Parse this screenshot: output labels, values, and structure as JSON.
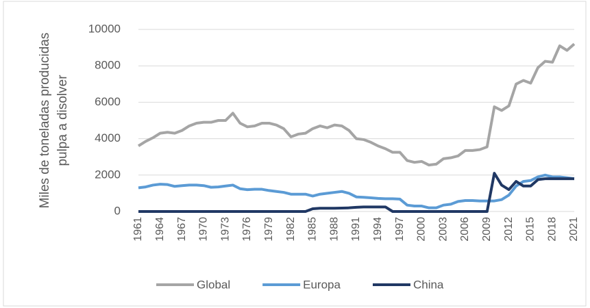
{
  "chart_data": {
    "type": "line",
    "y_label": [
      "Miles de toneladas producidas",
      "pulpa a disolver"
    ],
    "x": [
      1961,
      1962,
      1963,
      1964,
      1965,
      1966,
      1967,
      1968,
      1969,
      1970,
      1971,
      1972,
      1973,
      1974,
      1975,
      1976,
      1977,
      1978,
      1979,
      1980,
      1981,
      1982,
      1983,
      1984,
      1985,
      1986,
      1987,
      1988,
      1989,
      1990,
      1991,
      1992,
      1993,
      1994,
      1995,
      1996,
      1997,
      1998,
      1999,
      2000,
      2001,
      2002,
      2003,
      2004,
      2005,
      2006,
      2007,
      2008,
      2009,
      2010,
      2011,
      2012,
      2013,
      2014,
      2015,
      2016,
      2017,
      2018,
      2019,
      2020,
      2021
    ],
    "xlim": [
      1961,
      2021
    ],
    "xticks": [
      1961,
      1964,
      1967,
      1970,
      1973,
      1976,
      1979,
      1982,
      1985,
      1988,
      1991,
      1994,
      1997,
      2000,
      2003,
      2006,
      2009,
      2012,
      2015,
      2018,
      2021
    ],
    "ylim": [
      0,
      10000
    ],
    "yticks": [
      0,
      2000,
      4000,
      6000,
      8000,
      10000
    ],
    "grid": true,
    "legend": "bottom",
    "series": [
      {
        "name": "Global",
        "color": "#a5a5a5",
        "values": [
          3600,
          3850,
          4050,
          4300,
          4350,
          4300,
          4450,
          4700,
          4850,
          4900,
          4900,
          5000,
          5000,
          5400,
          4850,
          4650,
          4700,
          4850,
          4850,
          4750,
          4550,
          4100,
          4250,
          4300,
          4550,
          4700,
          4600,
          4750,
          4700,
          4450,
          4000,
          3950,
          3800,
          3600,
          3450,
          3250,
          3250,
          2800,
          2700,
          2750,
          2550,
          2600,
          2900,
          2950,
          3050,
          3350,
          3350,
          3400,
          3550,
          5750,
          5550,
          5800,
          7000,
          7200,
          7050,
          7900,
          8250,
          8200,
          9100,
          8850,
          9200
        ]
      },
      {
        "name": "Europa",
        "color": "#5b9bd5",
        "values": [
          1300,
          1350,
          1450,
          1500,
          1480,
          1380,
          1420,
          1450,
          1450,
          1420,
          1330,
          1350,
          1400,
          1450,
          1250,
          1200,
          1220,
          1220,
          1150,
          1100,
          1050,
          950,
          950,
          950,
          850,
          950,
          1000,
          1050,
          1100,
          1000,
          800,
          780,
          750,
          720,
          700,
          700,
          680,
          350,
          300,
          300,
          200,
          200,
          350,
          400,
          550,
          600,
          600,
          580,
          580,
          580,
          650,
          900,
          1400,
          1650,
          1700,
          1900,
          2000,
          1900,
          1900,
          1850,
          1800
        ]
      },
      {
        "name": "China",
        "color": "#203864",
        "values": [
          0,
          0,
          0,
          0,
          0,
          0,
          0,
          0,
          0,
          0,
          0,
          0,
          0,
          0,
          0,
          0,
          0,
          0,
          0,
          0,
          0,
          0,
          0,
          0,
          150,
          180,
          180,
          180,
          190,
          200,
          230,
          250,
          250,
          250,
          250,
          0,
          0,
          0,
          0,
          0,
          0,
          0,
          0,
          0,
          0,
          0,
          0,
          0,
          0,
          2100,
          1450,
          1200,
          1650,
          1400,
          1400,
          1750,
          1800,
          1800,
          1800,
          1800,
          1800
        ]
      }
    ]
  }
}
